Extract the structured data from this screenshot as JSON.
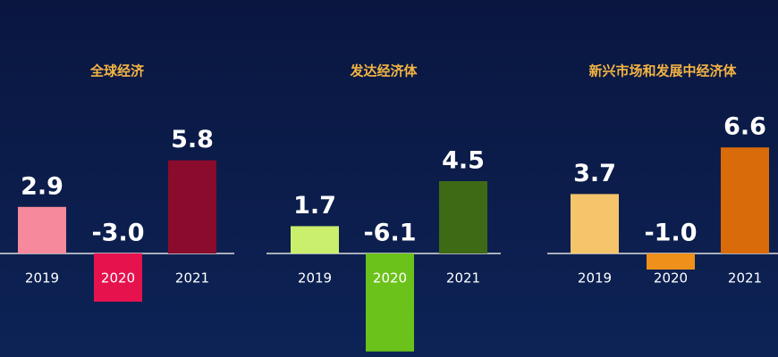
{
  "chart_data": [
    {
      "type": "bar",
      "title": "全球经济",
      "categories": [
        "2019",
        "2020",
        "2021"
      ],
      "values": [
        2.9,
        -3.0,
        5.8
      ],
      "value_labels": [
        "2.9",
        "-3.0",
        "5.8"
      ],
      "colors": [
        "#f6899b",
        "#e5124e",
        "#8a0b2b"
      ]
    },
    {
      "type": "bar",
      "title": "发达经济体",
      "categories": [
        "2019",
        "2020",
        "2021"
      ],
      "values": [
        1.7,
        -6.1,
        4.5
      ],
      "value_labels": [
        "1.7",
        "-6.1",
        "4.5"
      ],
      "colors": [
        "#c9ef6c",
        "#6bc21b",
        "#3e6a15"
      ]
    },
    {
      "type": "bar",
      "title": "新兴市场和发展中经济体",
      "categories": [
        "2019",
        "2020",
        "2021"
      ],
      "values": [
        3.7,
        -1.0,
        6.6
      ],
      "value_labels": [
        "3.7",
        "-1.0",
        "6.6"
      ],
      "colors": [
        "#f5c56b",
        "#ef901b",
        "#d96b0b"
      ]
    }
  ]
}
